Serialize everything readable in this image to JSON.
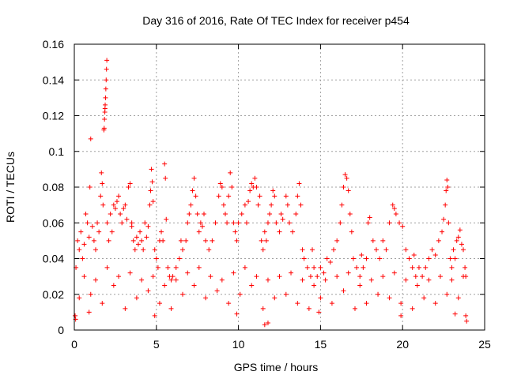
{
  "chart_data": {
    "type": "scatter",
    "title": "Day 316 of 2016, Rate Of TEC Index for receiver p454",
    "xlabel": "GPS time / hours",
    "ylabel": "ROTI / TECUs",
    "xlim": [
      0,
      25
    ],
    "ylim": [
      0,
      0.16
    ],
    "x_ticks": [
      0,
      5,
      10,
      15,
      20,
      25
    ],
    "x_tick_labels": [
      "0",
      "5",
      "10",
      "15",
      "20",
      "25"
    ],
    "y_ticks": [
      0,
      0.02,
      0.04,
      0.06,
      0.08,
      0.1,
      0.12,
      0.14,
      0.16
    ],
    "y_tick_labels": [
      "0",
      "0.02",
      "0.04",
      "0.06",
      "0.08",
      "0.1",
      "0.12",
      "0.14",
      "0.16"
    ],
    "grid": true,
    "marker": "plus",
    "color": "#ff0000",
    "series": [
      {
        "name": "ROTI",
        "points": [
          [
            0.1,
            0.035
          ],
          [
            0.2,
            0.05
          ],
          [
            0.3,
            0.045
          ],
          [
            0.4,
            0.055
          ],
          [
            0.5,
            0.04
          ],
          [
            0.6,
            0.048
          ],
          [
            0.7,
            0.065
          ],
          [
            0.8,
            0.06
          ],
          [
            0.9,
            0.052
          ],
          [
            0.95,
            0.08
          ],
          [
            1.0,
            0.107
          ],
          [
            1.1,
            0.058
          ],
          [
            1.2,
            0.05
          ],
          [
            1.3,
            0.045
          ],
          [
            1.4,
            0.06
          ],
          [
            1.5,
            0.055
          ],
          [
            1.6,
            0.075
          ],
          [
            1.65,
            0.088
          ],
          [
            1.7,
            0.082
          ],
          [
            1.75,
            0.07
          ],
          [
            1.8,
            0.112
          ],
          [
            1.82,
            0.113
          ],
          [
            1.84,
            0.118
          ],
          [
            1.86,
            0.122
          ],
          [
            1.87,
            0.124
          ],
          [
            1.88,
            0.126
          ],
          [
            1.9,
            0.13
          ],
          [
            1.92,
            0.135
          ],
          [
            1.94,
            0.14
          ],
          [
            1.96,
            0.146
          ],
          [
            1.98,
            0.151
          ],
          [
            2.0,
            0.06
          ],
          [
            2.1,
            0.05
          ],
          [
            2.2,
            0.065
          ],
          [
            2.3,
            0.055
          ],
          [
            2.4,
            0.07
          ],
          [
            2.5,
            0.068
          ],
          [
            2.6,
            0.072
          ],
          [
            2.7,
            0.075
          ],
          [
            2.8,
            0.065
          ],
          [
            2.9,
            0.06
          ],
          [
            3.0,
            0.068
          ],
          [
            3.1,
            0.07
          ],
          [
            3.2,
            0.062
          ],
          [
            3.3,
            0.08
          ],
          [
            3.4,
            0.082
          ],
          [
            3.5,
            0.06
          ],
          [
            3.6,
            0.05
          ],
          [
            3.7,
            0.045
          ],
          [
            3.8,
            0.052
          ],
          [
            3.9,
            0.048
          ],
          [
            4.0,
            0.055
          ],
          [
            4.1,
            0.05
          ],
          [
            4.2,
            0.045
          ],
          [
            4.3,
            0.06
          ],
          [
            4.4,
            0.052
          ],
          [
            4.5,
            0.058
          ],
          [
            4.6,
            0.07
          ],
          [
            4.65,
            0.078
          ],
          [
            4.7,
            0.09
          ],
          [
            4.75,
            0.083
          ],
          [
            4.8,
            0.072
          ],
          [
            4.9,
            0.045
          ],
          [
            5.0,
            0.04
          ],
          [
            5.1,
            0.035
          ],
          [
            5.2,
            0.05
          ],
          [
            5.3,
            0.055
          ],
          [
            5.4,
            0.05
          ],
          [
            5.5,
            0.093
          ],
          [
            5.55,
            0.085
          ],
          [
            5.6,
            0.062
          ],
          [
            5.7,
            0.035
          ],
          [
            5.8,
            0.03
          ],
          [
            5.9,
            0.028
          ],
          [
            6.0,
            0.03
          ],
          [
            6.2,
            0.035
          ],
          [
            6.4,
            0.04
          ],
          [
            6.6,
            0.045
          ],
          [
            6.8,
            0.05
          ],
          [
            6.9,
            0.06
          ],
          [
            7.0,
            0.065
          ],
          [
            7.1,
            0.07
          ],
          [
            7.2,
            0.078
          ],
          [
            7.3,
            0.085
          ],
          [
            7.4,
            0.075
          ],
          [
            7.5,
            0.065
          ],
          [
            7.6,
            0.055
          ],
          [
            7.7,
            0.06
          ],
          [
            7.8,
            0.058
          ],
          [
            7.9,
            0.065
          ],
          [
            8.0,
            0.05
          ],
          [
            8.2,
            0.045
          ],
          [
            8.4,
            0.05
          ],
          [
            8.6,
            0.06
          ],
          [
            8.8,
            0.075
          ],
          [
            8.9,
            0.082
          ],
          [
            9.0,
            0.08
          ],
          [
            9.1,
            0.07
          ],
          [
            9.2,
            0.065
          ],
          [
            9.3,
            0.06
          ],
          [
            9.4,
            0.075
          ],
          [
            9.5,
            0.088
          ],
          [
            9.6,
            0.08
          ],
          [
            9.7,
            0.06
          ],
          [
            9.8,
            0.055
          ],
          [
            9.9,
            0.05
          ],
          [
            10.0,
            0.06
          ],
          [
            10.2,
            0.065
          ],
          [
            10.4,
            0.07
          ],
          [
            10.5,
            0.06
          ],
          [
            10.6,
            0.072
          ],
          [
            10.7,
            0.078
          ],
          [
            10.8,
            0.082
          ],
          [
            10.9,
            0.08
          ],
          [
            11.0,
            0.085
          ],
          [
            11.1,
            0.08
          ],
          [
            11.2,
            0.07
          ],
          [
            11.3,
            0.075
          ],
          [
            11.4,
            0.05
          ],
          [
            11.5,
            0.045
          ],
          [
            11.6,
            0.055
          ],
          [
            11.7,
            0.05
          ],
          [
            11.8,
            0.06
          ],
          [
            11.9,
            0.065
          ],
          [
            12.0,
            0.07
          ],
          [
            12.1,
            0.078
          ],
          [
            12.2,
            0.075
          ],
          [
            12.3,
            0.06
          ],
          [
            12.5,
            0.055
          ],
          [
            12.7,
            0.062
          ],
          [
            12.9,
            0.075
          ],
          [
            13.0,
            0.07
          ],
          [
            13.1,
            0.06
          ],
          [
            13.3,
            0.055
          ],
          [
            13.5,
            0.065
          ],
          [
            13.6,
            0.075
          ],
          [
            13.7,
            0.082
          ],
          [
            13.8,
            0.07
          ],
          [
            13.9,
            0.045
          ],
          [
            14.0,
            0.04
          ],
          [
            14.2,
            0.035
          ],
          [
            14.4,
            0.03
          ],
          [
            14.6,
            0.035
          ],
          [
            14.8,
            0.03
          ],
          [
            15.0,
            0.035
          ],
          [
            15.2,
            0.032
          ],
          [
            15.4,
            0.04
          ],
          [
            15.6,
            0.038
          ],
          [
            15.8,
            0.045
          ],
          [
            16.0,
            0.05
          ],
          [
            16.2,
            0.06
          ],
          [
            16.3,
            0.07
          ],
          [
            16.4,
            0.08
          ],
          [
            16.5,
            0.087
          ],
          [
            16.6,
            0.085
          ],
          [
            16.7,
            0.078
          ],
          [
            16.8,
            0.065
          ],
          [
            16.9,
            0.055
          ],
          [
            17.0,
            0.04
          ],
          [
            17.2,
            0.035
          ],
          [
            17.4,
            0.03
          ],
          [
            17.6,
            0.035
          ],
          [
            17.8,
            0.04
          ],
          [
            17.9,
            0.06
          ],
          [
            18.0,
            0.063
          ],
          [
            18.2,
            0.05
          ],
          [
            18.4,
            0.045
          ],
          [
            18.6,
            0.04
          ],
          [
            18.8,
            0.05
          ],
          [
            19.0,
            0.045
          ],
          [
            19.2,
            0.06
          ],
          [
            19.4,
            0.07
          ],
          [
            19.5,
            0.068
          ],
          [
            19.6,
            0.065
          ],
          [
            19.8,
            0.06
          ],
          [
            20.0,
            0.058
          ],
          [
            20.2,
            0.045
          ],
          [
            20.4,
            0.04
          ],
          [
            20.6,
            0.035
          ],
          [
            20.8,
            0.03
          ],
          [
            21.0,
            0.035
          ],
          [
            21.2,
            0.03
          ],
          [
            21.4,
            0.035
          ],
          [
            21.6,
            0.04
          ],
          [
            21.8,
            0.045
          ],
          [
            22.0,
            0.042
          ],
          [
            22.2,
            0.05
          ],
          [
            22.4,
            0.055
          ],
          [
            22.5,
            0.062
          ],
          [
            22.6,
            0.07
          ],
          [
            22.65,
            0.078
          ],
          [
            22.7,
            0.084
          ],
          [
            22.75,
            0.08
          ],
          [
            22.8,
            0.06
          ],
          [
            22.9,
            0.04
          ],
          [
            23.0,
            0.035
          ],
          [
            23.1,
            0.045
          ],
          [
            23.2,
            0.04
          ],
          [
            23.3,
            0.05
          ],
          [
            23.4,
            0.052
          ],
          [
            23.5,
            0.056
          ],
          [
            23.6,
            0.048
          ],
          [
            23.7,
            0.045
          ],
          [
            23.8,
            0.035
          ],
          [
            23.85,
            0.03
          ],
          [
            3.5,
            0.058
          ],
          [
            6.5,
            0.05
          ],
          [
            14.5,
            0.045
          ],
          [
            17.5,
            0.042
          ],
          [
            20.7,
            0.042
          ],
          [
            12.6,
            0.065
          ],
          [
            0.3,
            0.018
          ],
          [
            1.0,
            0.02
          ],
          [
            1.7,
            0.015
          ],
          [
            2.4,
            0.025
          ],
          [
            3.1,
            0.012
          ],
          [
            3.8,
            0.018
          ],
          [
            4.5,
            0.022
          ],
          [
            5.2,
            0.015
          ],
          [
            5.9,
            0.012
          ],
          [
            6.6,
            0.02
          ],
          [
            7.3,
            0.025
          ],
          [
            8.0,
            0.018
          ],
          [
            8.7,
            0.022
          ],
          [
            9.4,
            0.015
          ],
          [
            10.1,
            0.02
          ],
          [
            10.8,
            0.025
          ],
          [
            11.5,
            0.012
          ],
          [
            12.2,
            0.018
          ],
          [
            12.9,
            0.02
          ],
          [
            13.6,
            0.015
          ],
          [
            14.3,
            0.012
          ],
          [
            15.0,
            0.018
          ],
          [
            15.7,
            0.015
          ],
          [
            16.4,
            0.022
          ],
          [
            17.1,
            0.012
          ],
          [
            17.8,
            0.015
          ],
          [
            18.5,
            0.02
          ],
          [
            19.2,
            0.018
          ],
          [
            19.9,
            0.015
          ],
          [
            20.6,
            0.012
          ],
          [
            21.3,
            0.018
          ],
          [
            22.0,
            0.015
          ],
          [
            22.7,
            0.02
          ],
          [
            23.4,
            0.018
          ],
          [
            11.6,
            0.003
          ],
          [
            11.8,
            0.004
          ],
          [
            0.05,
            0.008
          ],
          [
            0.08,
            0.006
          ],
          [
            23.9,
            0.005
          ],
          [
            23.85,
            0.008
          ],
          [
            0.6,
            0.03
          ],
          [
            1.3,
            0.028
          ],
          [
            2.0,
            0.035
          ],
          [
            2.7,
            0.03
          ],
          [
            3.4,
            0.032
          ],
          [
            4.1,
            0.028
          ],
          [
            4.8,
            0.03
          ],
          [
            5.5,
            0.025
          ],
          [
            6.2,
            0.028
          ],
          [
            6.9,
            0.032
          ],
          [
            7.6,
            0.035
          ],
          [
            8.3,
            0.03
          ],
          [
            9.0,
            0.028
          ],
          [
            9.7,
            0.032
          ],
          [
            10.4,
            0.035
          ],
          [
            11.1,
            0.03
          ],
          [
            11.8,
            0.028
          ],
          [
            12.5,
            0.03
          ],
          [
            13.2,
            0.032
          ],
          [
            13.9,
            0.028
          ],
          [
            14.6,
            0.025
          ],
          [
            15.3,
            0.028
          ],
          [
            16.0,
            0.03
          ],
          [
            16.7,
            0.032
          ],
          [
            17.4,
            0.025
          ],
          [
            18.1,
            0.028
          ],
          [
            18.8,
            0.03
          ],
          [
            19.5,
            0.032
          ],
          [
            20.2,
            0.028
          ],
          [
            20.9,
            0.025
          ],
          [
            21.6,
            0.028
          ],
          [
            22.3,
            0.03
          ],
          [
            23.0,
            0.028
          ],
          [
            23.7,
            0.03
          ],
          [
            0.9,
            0.01
          ],
          [
            4.9,
            0.008
          ],
          [
            9.9,
            0.009
          ],
          [
            14.9,
            0.01
          ],
          [
            19.9,
            0.008
          ],
          [
            23.2,
            0.009
          ]
        ]
      }
    ]
  }
}
